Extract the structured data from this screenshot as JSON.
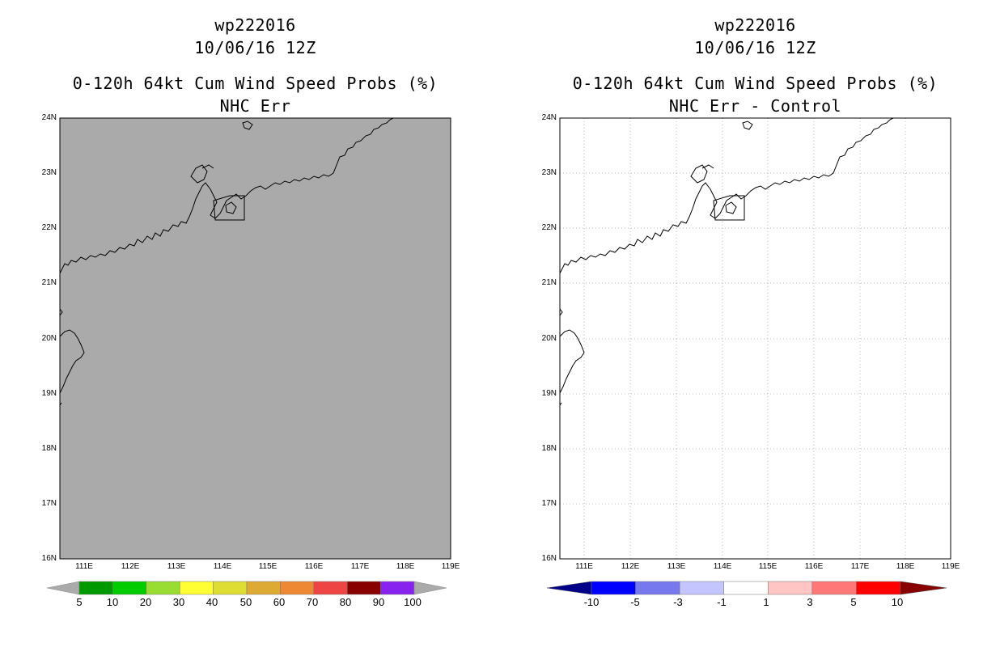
{
  "panels": [
    {
      "id": "left",
      "storm_id": "wp222016",
      "datetime": "10/06/16 12Z",
      "product": "0-120h 64kt Cum Wind Speed Probs (%)",
      "subtitle": "NHC Err",
      "background_color": "#aaaaaa",
      "gridlines": false,
      "colorbar": {
        "labels": [
          "5",
          "10",
          "20",
          "30",
          "40",
          "50",
          "60",
          "70",
          "80",
          "90",
          "100"
        ],
        "colors": [
          "#009900",
          "#00cc00",
          "#99dd33",
          "#ffff33",
          "#dddd33",
          "#ddaa33",
          "#ee8833",
          "#ee4444",
          "#880000",
          "#8822ee"
        ],
        "under_color": "#aaaaaa",
        "over_color": "#aaaaaa"
      }
    },
    {
      "id": "right",
      "storm_id": "wp222016",
      "datetime": "10/06/16 12Z",
      "product": "0-120h 64kt Cum Wind Speed Probs (%)",
      "subtitle": "NHC Err - Control",
      "background_color": "#ffffff",
      "gridlines": true,
      "colorbar": {
        "labels": [
          "-10",
          "-5",
          "-3",
          "-1",
          "1",
          "3",
          "5",
          "10"
        ],
        "colors": [
          "#0000ff",
          "#7777ee",
          "#c4c4ff",
          "#ffffff",
          "#ffc4c4",
          "#ff7777",
          "#ff0000"
        ],
        "under_color": "#000088",
        "over_color": "#880000"
      }
    }
  ],
  "map": {
    "lat_labels": [
      "24N",
      "23N",
      "22N",
      "21N",
      "20N",
      "19N",
      "18N",
      "17N",
      "16N"
    ],
    "lon_labels": [
      "111E",
      "112E",
      "113E",
      "114E",
      "115E",
      "116E",
      "117E",
      "118E",
      "119E"
    ]
  }
}
